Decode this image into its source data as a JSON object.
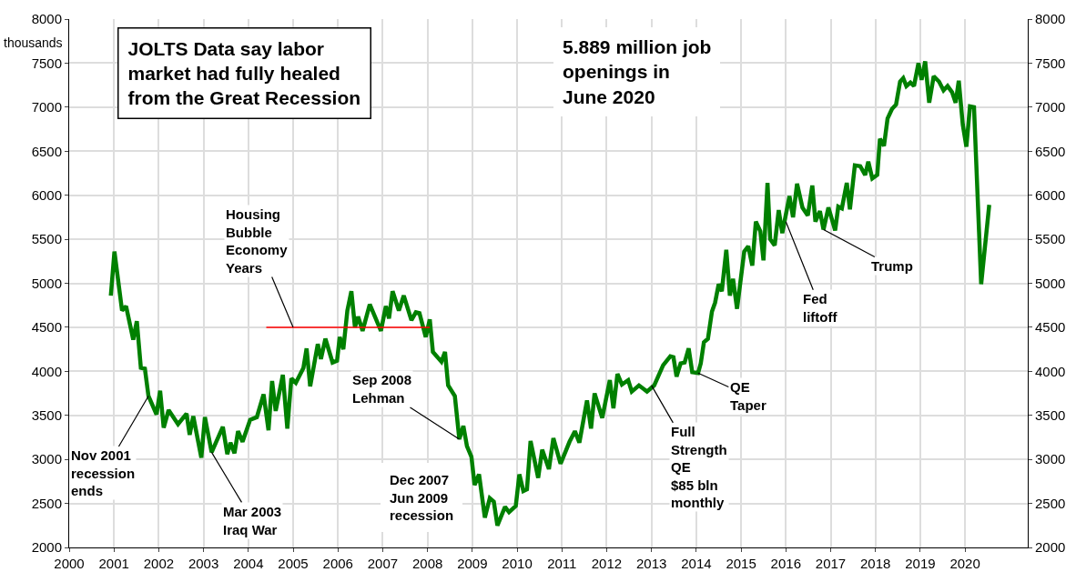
{
  "chart_data": {
    "type": "line",
    "ylabel": "thousands",
    "xlim": [
      2000,
      2021.4
    ],
    "xticks": [
      2000,
      2001,
      2002,
      2003,
      2004,
      2005,
      2006,
      2007,
      2008,
      2009,
      2010,
      2011,
      2012,
      2013,
      2014,
      2015,
      2016,
      2017,
      2018,
      2019,
      2020
    ],
    "ylim": [
      2000,
      8000
    ],
    "yticks": [
      2000,
      2500,
      3000,
      3500,
      4000,
      4500,
      5000,
      5500,
      6000,
      6500,
      7000,
      7500,
      8000
    ],
    "y2lim": [
      2000,
      8000
    ],
    "y2ticks": [
      2000,
      2500,
      3000,
      3500,
      4000,
      4500,
      5000,
      5500,
      6000,
      6500,
      7000,
      7500,
      8000
    ],
    "grid": true,
    "line_style": "solid",
    "series": [
      {
        "color": "#008000",
        "x": [
          2000.93,
          2001.01,
          2001.18,
          2001.27,
          2001.43,
          2001.51,
          2001.6,
          2001.69,
          2001.77,
          2001.95,
          2002.03,
          2002.11,
          2002.22,
          2002.43,
          2002.62,
          2002.69,
          2002.77,
          2002.95,
          2003.03,
          2003.18,
          2003.43,
          2003.53,
          2003.6,
          2003.69,
          2003.77,
          2003.87,
          2004.04,
          2004.19,
          2004.34,
          2004.45,
          2004.53,
          2004.61,
          2004.77,
          2004.87,
          2004.96,
          2005.06,
          2005.23,
          2005.3,
          2005.38,
          2005.55,
          2005.62,
          2005.72,
          2005.88,
          2005.98,
          2006.04,
          2006.12,
          2006.21,
          2006.3,
          2006.38,
          2006.45,
          2006.55,
          2006.71,
          2006.96,
          2007.07,
          2007.14,
          2007.22,
          2007.36,
          2007.47,
          2007.64,
          2007.74,
          2007.82,
          2007.96,
          2008.05,
          2008.12,
          2008.31,
          2008.39,
          2008.46,
          2008.61,
          2008.71,
          2008.8,
          2008.88,
          2008.98,
          2009.05,
          2009.15,
          2009.28,
          2009.39,
          2009.48,
          2009.56,
          2009.73,
          2009.82,
          2009.97,
          2010.05,
          2010.14,
          2010.22,
          2010.3,
          2010.47,
          2010.56,
          2010.71,
          2010.81,
          2010.97,
          2011.17,
          2011.29,
          2011.39,
          2011.56,
          2011.65,
          2011.73,
          2011.9,
          2012.07,
          2012.15,
          2012.24,
          2012.34,
          2012.48,
          2012.56,
          2012.72,
          2012.9,
          2013.06,
          2013.26,
          2013.42,
          2013.49,
          2013.56,
          2013.65,
          2013.74,
          2013.83,
          2013.91,
          2014.04,
          2014.1,
          2014.17,
          2014.26,
          2014.35,
          2014.42,
          2014.5,
          2014.57,
          2014.67,
          2014.75,
          2014.82,
          2014.91,
          2015.07,
          2015.16,
          2015.25,
          2015.33,
          2015.43,
          2015.5,
          2015.59,
          2015.65,
          2015.75,
          2015.84,
          2015.92,
          2016.08,
          2016.16,
          2016.25,
          2016.37,
          2016.49,
          2016.59,
          2016.66,
          2016.76,
          2016.84,
          2016.95,
          2017.1,
          2017.17,
          2017.25,
          2017.36,
          2017.43,
          2017.54,
          2017.66,
          2017.77,
          2017.84,
          2017.93,
          2018.04,
          2018.1,
          2018.19,
          2018.27,
          2018.37,
          2018.46,
          2018.55,
          2018.62,
          2018.69,
          2018.78,
          2018.86,
          2018.96,
          2019.03,
          2019.11,
          2019.2,
          2019.3,
          2019.42,
          2019.52,
          2019.61,
          2019.71,
          2019.79,
          2019.86,
          2019.95,
          2020.03,
          2020.11,
          2020.2,
          2020.36,
          2020.54
        ],
        "values": [
          4860,
          5360,
          4690,
          4740,
          4360,
          4570,
          4040,
          4030,
          3720,
          3510,
          3780,
          3360,
          3560,
          3400,
          3520,
          3280,
          3490,
          3020,
          3480,
          3080,
          3370,
          3060,
          3190,
          3070,
          3320,
          3200,
          3450,
          3480,
          3740,
          3330,
          3890,
          3550,
          3960,
          3350,
          3920,
          3870,
          4040,
          4260,
          3830,
          4310,
          4140,
          4370,
          4100,
          4120,
          4390,
          4250,
          4690,
          4910,
          4500,
          4620,
          4460,
          4760,
          4460,
          4740,
          4600,
          4910,
          4690,
          4860,
          4580,
          4670,
          4660,
          4390,
          4590,
          4220,
          4110,
          4220,
          3840,
          3720,
          3230,
          3380,
          3150,
          3030,
          2710,
          2830,
          2340,
          2560,
          2520,
          2250,
          2460,
          2400,
          2470,
          2830,
          2640,
          2660,
          3210,
          2790,
          3110,
          2890,
          3240,
          2950,
          3200,
          3320,
          3190,
          3670,
          3350,
          3750,
          3470,
          3900,
          3580,
          3970,
          3850,
          3900,
          3770,
          3840,
          3770,
          3840,
          4070,
          4170,
          4160,
          3940,
          4090,
          4100,
          4260,
          3990,
          3980,
          4090,
          4330,
          4370,
          4680,
          4780,
          4990,
          4910,
          5380,
          4860,
          5050,
          4710,
          5360,
          5420,
          5200,
          5700,
          5590,
          5260,
          6140,
          5500,
          5430,
          5830,
          5570,
          5990,
          5750,
          6130,
          5860,
          5770,
          6110,
          5700,
          5820,
          5610,
          5860,
          5600,
          5870,
          5850,
          6140,
          5840,
          6340,
          6330,
          6230,
          6380,
          6190,
          6230,
          6640,
          6560,
          6870,
          6980,
          7030,
          7290,
          7330,
          7240,
          7280,
          7240,
          7500,
          7310,
          7520,
          7050,
          7350,
          7290,
          7190,
          7240,
          7170,
          7050,
          7300,
          6800,
          6550,
          7010,
          7000,
          4990,
          5890
        ]
      },
      {
        "color": "#ff0000",
        "x": [
          2004.4,
          2008.05
        ],
        "values": [
          4500,
          4500
        ]
      }
    ],
    "annotations": [
      "JOLTS Data say labor\nmarket had fully healed\nfrom the Great Recession",
      "5.889 million job\nopenings in\nJune 2020",
      {
        "text": "Nov 2001\nrecession\nends",
        "x": 2001.77,
        "y": 3720
      },
      {
        "text": "Mar 2003\nIraq War",
        "x": 2003.18,
        "y": 3080
      },
      {
        "text": "Housing\nBubble\nEconomy\nYears",
        "x": 2005.0,
        "y": 4500
      },
      {
        "text": "Sep 2008\nLehman",
        "x": 2008.71,
        "y": 3230
      },
      "Dec 2007\nJun 2009\nrecession",
      {
        "text": "Full\nStrength\nQE\n$85 bln\nmonthly",
        "x": 2013.0,
        "y": 3840
      },
      {
        "text": "QE\nTaper",
        "x": 2014.04,
        "y": 3980
      },
      {
        "text": "Fed\nliftoff",
        "x": 2016.0,
        "y": 5700
      },
      {
        "text": "Trump",
        "x": 2016.84,
        "y": 5610
      }
    ]
  }
}
